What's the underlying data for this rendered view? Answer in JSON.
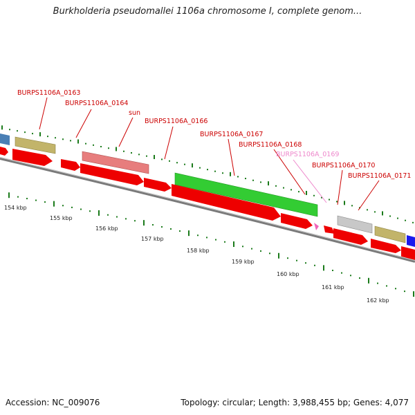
{
  "title": "Burkholderia pseudomallei 1106a chromosome I, complete genom...",
  "footer": {
    "accession": "Accession: NC_009076",
    "summary": "Topology: circular; Length: 3,988,455 bp; Genes: 4,077"
  },
  "colors": {
    "cds_arrow": "#ee0000",
    "label_red": "#cc0000",
    "label_pink": "#ee88cc",
    "tick_green": "#1a7a1a",
    "backbone": "#888888",
    "gene_khaki": "#c2b46a",
    "gene_salmon": "#e77d7d",
    "gene_green": "#33cc33",
    "gene_grey": "#c8c8c8",
    "gene_blue": "#1a1aee",
    "gene_steelblue": "#4a7fb5"
  },
  "gene_labels": [
    {
      "text": "BURPS1106A_0163",
      "color": "red"
    },
    {
      "text": "BURPS1106A_0164",
      "color": "red"
    },
    {
      "text": "sun",
      "color": "red"
    },
    {
      "text": "BURPS1106A_0166",
      "color": "red"
    },
    {
      "text": "BURPS1106A_0167",
      "color": "red"
    },
    {
      "text": "BURPS1106A_0168",
      "color": "red"
    },
    {
      "text": "BURPS1106A_0169",
      "color": "pink"
    },
    {
      "text": "BURPS1106A_0170",
      "color": "red"
    },
    {
      "text": "BURPS1106A_0171",
      "color": "red"
    }
  ],
  "scale_labels": [
    "154 kbp",
    "155 kbp",
    "156 kbp",
    "157 kbp",
    "158 kbp",
    "159 kbp",
    "160 kbp",
    "161 kbp",
    "162 kbp"
  ]
}
